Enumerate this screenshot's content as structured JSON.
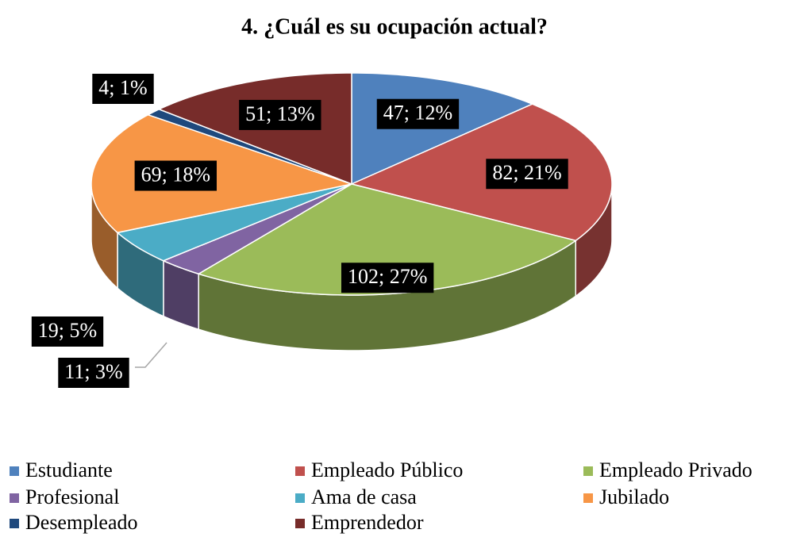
{
  "chart_data": {
    "type": "pie3d",
    "title": "4. ¿Cuál es su ocupación actual?",
    "categories": [
      "Estudiante",
      "Empleado Público",
      "Empleado Privado",
      "Profesional",
      "Ama de casa",
      "Jubilado",
      "Desempleado",
      "Emprendedor"
    ],
    "values": [
      47,
      82,
      102,
      11,
      19,
      69,
      4,
      51
    ],
    "value_labels": [
      "47; 12%",
      "82; 21%",
      "102; 27%",
      "11; 3%",
      "19; 5%",
      "69; 18%",
      "4; 1%",
      "51; 13%"
    ],
    "colors": [
      "#4f81bd",
      "#c0504d",
      "#9bbb59",
      "#8064a2",
      "#4bacc6",
      "#f79646",
      "#1f497d",
      "#772c2a"
    ],
    "legend": "bottom"
  }
}
